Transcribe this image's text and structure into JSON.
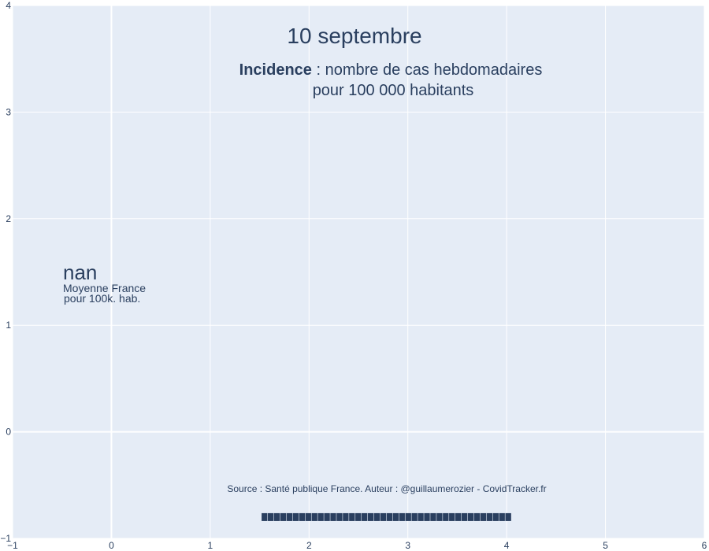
{
  "chart_data": {
    "type": "scatter",
    "title": "10 septembre",
    "subtitle": {
      "bold": "Incidence",
      "rest_line1": " : nombre de cas hebdomadaires",
      "line2": "pour 100 000 habitants"
    },
    "xlabel": "",
    "ylabel": "",
    "xlim": [
      -1,
      6
    ],
    "ylim": [
      -1,
      4
    ],
    "x_ticks": [
      -1,
      0,
      1,
      2,
      3,
      4,
      5,
      6
    ],
    "y_ticks": [
      -1,
      0,
      1,
      2,
      3,
      4
    ],
    "x_tick_labels": [
      "−1",
      "0",
      "1",
      "2",
      "3",
      "4",
      "5",
      "6"
    ],
    "y_tick_labels": [
      "−1",
      "0",
      "1",
      "2",
      "3",
      "4"
    ],
    "grid": true,
    "series": [],
    "annotations": {
      "value": "nan",
      "value_caption_line1": "Moyenne France",
      "value_caption_line2": "pour 100k. hab.",
      "source": "Source : Santé publique France. Auteur : @guillaumerozier - CovidTracker.fr",
      "progress_bar": {
        "x_start": 1.52,
        "x_end": 4.05,
        "y": -0.8,
        "segments": 40
      }
    },
    "colors": {
      "plot_bg": "#e5ecf6",
      "grid": "#ffffff",
      "text": "#2a3f5f",
      "bar": "#2a3f5f"
    }
  }
}
